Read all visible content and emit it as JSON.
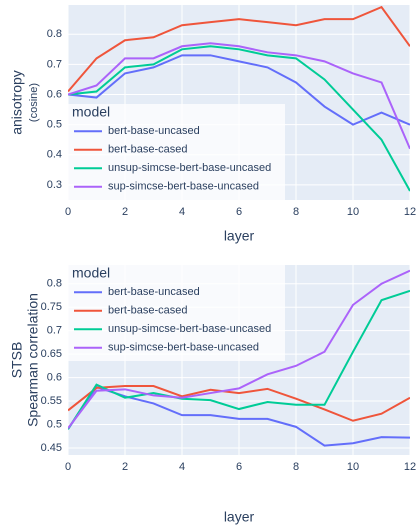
{
  "chart_data": [
    {
      "type": "line",
      "ylabel": [
        "anisotropy",
        "(cosine)"
      ],
      "xlabel": "layer",
      "x": [
        0,
        1,
        2,
        3,
        4,
        5,
        6,
        7,
        8,
        9,
        10,
        11,
        12
      ],
      "xlim": [
        0,
        12
      ],
      "xticks": [
        0,
        2,
        4,
        6,
        8,
        10,
        12
      ],
      "ylim": [
        0.25,
        0.897
      ],
      "yticks": [
        0.3,
        0.4,
        0.5,
        0.6,
        0.7,
        0.8
      ],
      "grid": true,
      "legend_title": "model",
      "legend_loc": "lower left",
      "series": [
        {
          "name": "bert-base-uncased",
          "color": "#636efa",
          "values": [
            0.6,
            0.59,
            0.67,
            0.69,
            0.73,
            0.73,
            0.71,
            0.69,
            0.64,
            0.56,
            0.5,
            0.54,
            0.5
          ]
        },
        {
          "name": "bert-base-cased",
          "color": "#ef553b",
          "values": [
            0.61,
            0.72,
            0.78,
            0.79,
            0.83,
            0.84,
            0.85,
            0.84,
            0.83,
            0.85,
            0.85,
            0.89,
            0.76
          ]
        },
        {
          "name": "unsup-simcse-bert-base-uncased",
          "color": "#00cc96",
          "values": [
            0.6,
            0.61,
            0.69,
            0.7,
            0.75,
            0.76,
            0.75,
            0.73,
            0.72,
            0.65,
            0.55,
            0.45,
            0.28
          ]
        },
        {
          "name": "sup-simcse-bert-base-uncased",
          "color": "#ab63fa",
          "values": [
            0.6,
            0.63,
            0.72,
            0.72,
            0.76,
            0.77,
            0.76,
            0.74,
            0.73,
            0.71,
            0.67,
            0.64,
            0.42
          ]
        }
      ]
    },
    {
      "type": "line",
      "ylabel": [
        "STSB",
        "Spearman correlation"
      ],
      "xlabel": "layer",
      "x": [
        0,
        1,
        2,
        3,
        4,
        5,
        6,
        7,
        8,
        9,
        10,
        11,
        12
      ],
      "xlim": [
        0,
        12
      ],
      "xticks": [
        0,
        2,
        4,
        6,
        8,
        10,
        12
      ],
      "ylim": [
        0.435,
        0.84
      ],
      "yticks": [
        0.45,
        0.5,
        0.55,
        0.6,
        0.65,
        0.7,
        0.75,
        0.8
      ],
      "grid": true,
      "legend_title": "model",
      "legend_loc": "upper left",
      "series": [
        {
          "name": "bert-base-uncased",
          "color": "#636efa",
          "values": [
            0.49,
            0.58,
            0.56,
            0.545,
            0.52,
            0.52,
            0.512,
            0.512,
            0.495,
            0.455,
            0.46,
            0.473,
            0.472
          ]
        },
        {
          "name": "bert-base-cased",
          "color": "#ef553b",
          "values": [
            0.53,
            0.578,
            0.582,
            0.582,
            0.56,
            0.574,
            0.567,
            0.576,
            0.555,
            0.532,
            0.508,
            0.523,
            0.557
          ]
        },
        {
          "name": "unsup-simcse-bert-base-uncased",
          "color": "#00cc96",
          "values": [
            0.49,
            0.585,
            0.557,
            0.567,
            0.555,
            0.552,
            0.533,
            0.548,
            0.542,
            0.542,
            0.655,
            0.765,
            0.785
          ]
        },
        {
          "name": "sup-simcse-bert-base-uncased",
          "color": "#ab63fa",
          "values": [
            0.492,
            0.572,
            0.575,
            0.562,
            0.557,
            0.567,
            0.577,
            0.607,
            0.625,
            0.655,
            0.755,
            0.8,
            0.828
          ]
        }
      ]
    }
  ]
}
